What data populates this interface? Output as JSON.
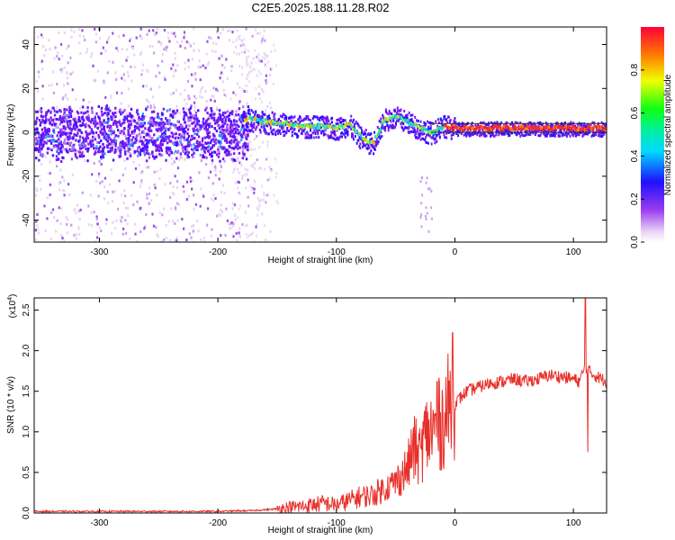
{
  "title": "C2E5.2025.188.11.28.R02",
  "chart_data": [
    {
      "type": "heatmap",
      "xlabel": "Height of straight line (km)",
      "ylabel": "Frequency (Hz)",
      "xlim": [
        -355,
        128
      ],
      "ylim": [
        -50,
        48
      ],
      "xticks": [
        -300,
        -200,
        -100,
        0,
        100
      ],
      "yticks": [
        -40,
        -20,
        0,
        20,
        40
      ],
      "colorbar": {
        "label": "Normalized spectral amplitude",
        "range": [
          0,
          1
        ],
        "ticks": [
          "0.0",
          "0.2",
          "0.4",
          "0.6",
          "0.8"
        ],
        "colormap": "rainbow (white-violet-blue-cyan-green-yellow-red)"
      },
      "ridge": {
        "description": "frequency peak vs height",
        "x": [
          -175,
          -160,
          -145,
          -130,
          -115,
          -100,
          -90,
          -80,
          -70,
          -60,
          -50,
          -40,
          -30,
          -20,
          -10,
          0,
          20,
          50,
          90,
          110,
          125
        ],
        "y": [
          6,
          5,
          4,
          3,
          3,
          2,
          4,
          -2,
          -5,
          6,
          7,
          5,
          2,
          0,
          3,
          2,
          2,
          2,
          2,
          2,
          2
        ]
      }
    },
    {
      "type": "line",
      "xlabel": "Height of straight line (km)",
      "ylabel": "SNR (10 * v/v)",
      "y_multiplier": "(x10^4)",
      "xlim": [
        -355,
        128
      ],
      "ylim": [
        0,
        2.65
      ],
      "xticks": [
        -300,
        -200,
        -100,
        0,
        100
      ],
      "yticks": [
        "0.0",
        "0.5",
        "1.0",
        "1.5",
        "2.0",
        "2.5"
      ],
      "series": [
        {
          "color": "#e8302a",
          "x": [
            -355,
            -300,
            -250,
            -200,
            -170,
            -150,
            -130,
            -110,
            -100,
            -90,
            -80,
            -70,
            -60,
            -50,
            -40,
            -35,
            -30,
            -25,
            -20,
            -15,
            -10,
            -5,
            0,
            10,
            20,
            30,
            40,
            50,
            60,
            70,
            80,
            90,
            100,
            105,
            110,
            115,
            120,
            128
          ],
          "y": [
            0.02,
            0.02,
            0.02,
            0.02,
            0.03,
            0.05,
            0.08,
            0.12,
            0.1,
            0.15,
            0.2,
            0.22,
            0.3,
            0.38,
            0.55,
            0.8,
            0.7,
            0.95,
            1.0,
            1.05,
            1.15,
            1.3,
            1.35,
            1.5,
            1.55,
            1.6,
            1.62,
            1.65,
            1.62,
            1.65,
            1.7,
            1.68,
            1.65,
            1.62,
            1.8,
            1.72,
            1.68,
            1.62
          ]
        }
      ],
      "spikes": [
        {
          "x": -2,
          "y": 2.22
        },
        {
          "x": -15,
          "y": 1.62
        },
        {
          "x": 110,
          "y": 2.65
        },
        {
          "x": 112,
          "y": 0.75
        }
      ]
    }
  ]
}
